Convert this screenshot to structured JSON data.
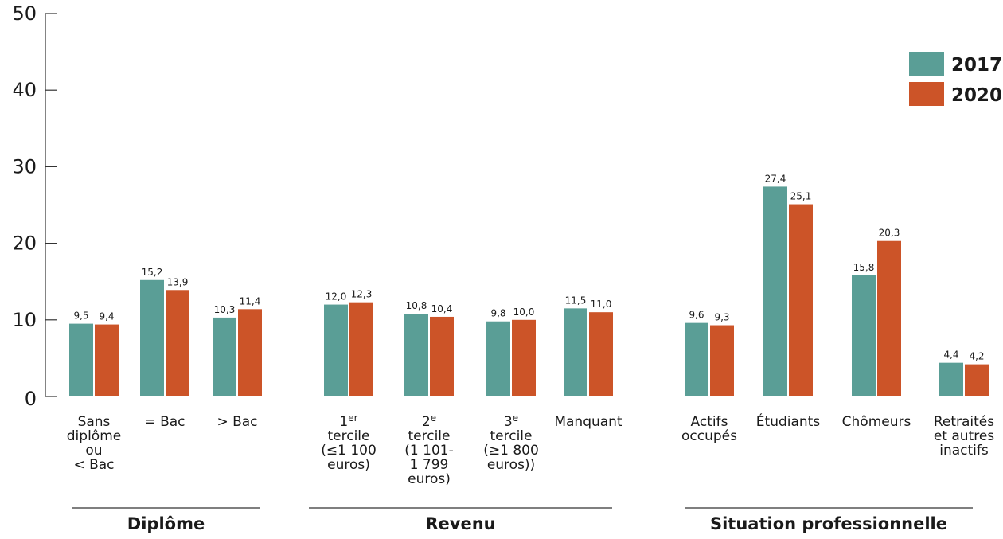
{
  "chart_data": {
    "type": "bar",
    "ylim": [
      0,
      50
    ],
    "yticks": [
      "0",
      "10",
      "20",
      "30",
      "40",
      "50"
    ],
    "legend_position": "top-right",
    "colors": {
      "2017": "#5a9e96",
      "2020": "#cc5428"
    },
    "series": [
      {
        "name": "2017",
        "color": "#5a9e96"
      },
      {
        "name": "2020",
        "color": "#cc5428"
      }
    ],
    "groups": [
      {
        "name": "Diplôme",
        "categories": [
          {
            "label": [
              "Sans",
              "diplôme",
              "ou",
              "< Bac"
            ],
            "values": [
              9.5,
              9.4
            ],
            "labels": [
              "9,5",
              "9,4"
            ]
          },
          {
            "label": [
              "= Bac"
            ],
            "values": [
              15.2,
              13.9
            ],
            "labels": [
              "15,2",
              "13,9"
            ]
          },
          {
            "label": [
              "> Bac"
            ],
            "values": [
              10.3,
              11.4
            ],
            "labels": [
              "10,3",
              "11,4"
            ]
          }
        ]
      },
      {
        "name": "Revenu",
        "categories": [
          {
            "label": [
              "1|er",
              "tercile",
              "(≤1 100",
              "euros)"
            ],
            "values": [
              12.0,
              12.3
            ],
            "labels": [
              "12,0",
              "12,3"
            ]
          },
          {
            "label": [
              "2|e",
              "tercile",
              "(1 101-",
              "1 799",
              "euros)"
            ],
            "values": [
              10.8,
              10.4
            ],
            "labels": [
              "10,8",
              "10,4"
            ]
          },
          {
            "label": [
              "3|e",
              "tercile",
              "(≥1 800",
              "euros))"
            ],
            "values": [
              9.8,
              10.0
            ],
            "labels": [
              "9,8",
              "10,0"
            ]
          },
          {
            "label": [
              "Manquant"
            ],
            "values": [
              11.5,
              11.0
            ],
            "labels": [
              "11,5",
              "11,0"
            ]
          }
        ]
      },
      {
        "name": "Situation professionnelle",
        "categories": [
          {
            "label": [
              "Actifs",
              "occupés"
            ],
            "values": [
              9.6,
              9.3
            ],
            "labels": [
              "9,6",
              "9,3"
            ]
          },
          {
            "label": [
              "Étudiants"
            ],
            "values": [
              27.4,
              25.1
            ],
            "labels": [
              "27,4",
              "25,1"
            ]
          },
          {
            "label": [
              "Chômeurs"
            ],
            "values": [
              15.8,
              20.3
            ],
            "labels": [
              "15,8",
              "20,3"
            ]
          },
          {
            "label": [
              "Retraités",
              "et autres",
              "inactifs"
            ],
            "values": [
              4.4,
              4.2
            ],
            "labels": [
              "4,4",
              "4,2"
            ]
          }
        ]
      }
    ]
  }
}
